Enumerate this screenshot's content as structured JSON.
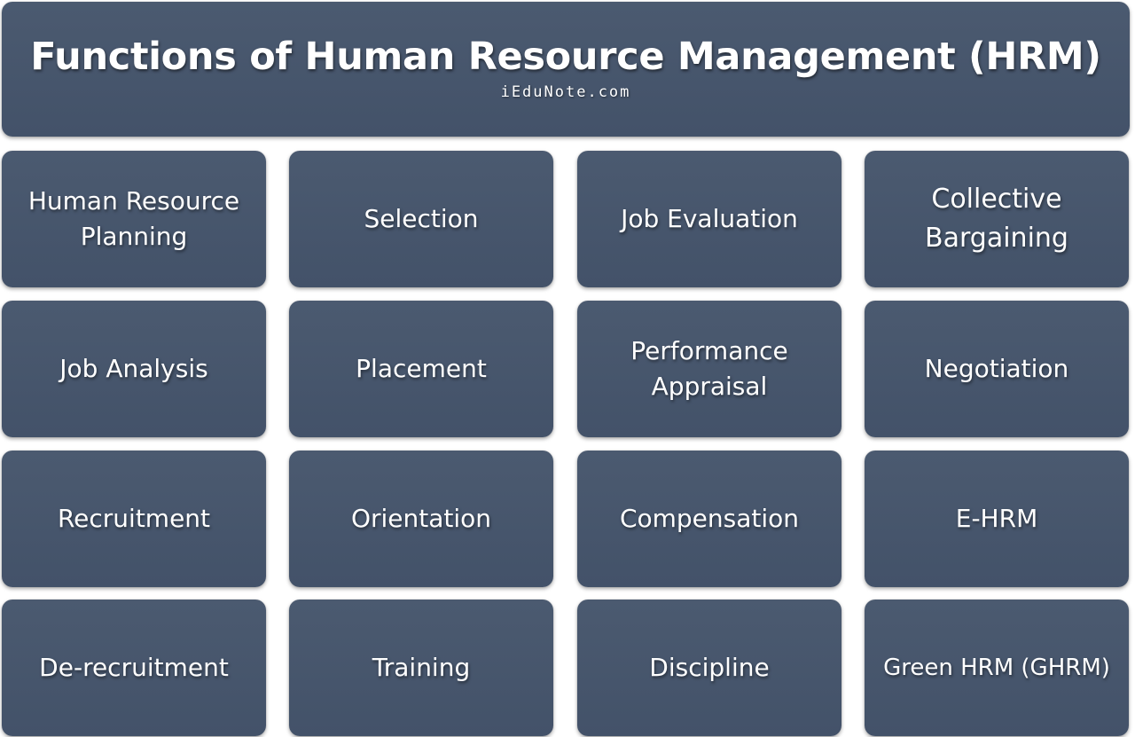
{
  "header": {
    "title": "Functions of Human Resource Management (HRM)",
    "subtitle": "iEduNote.com"
  },
  "colors": {
    "box": "#475569",
    "text": "#ffffff",
    "background": "#ffffff"
  },
  "functions": [
    {
      "label": "Human Resource Planning"
    },
    {
      "label": "Selection"
    },
    {
      "label": "Job Evaluation"
    },
    {
      "label": "Collective Bargaining"
    },
    {
      "label": "Job Analysis"
    },
    {
      "label": "Placement"
    },
    {
      "label": "Performance Appraisal"
    },
    {
      "label": "Negotiation"
    },
    {
      "label": "Recruitment"
    },
    {
      "label": "Orientation"
    },
    {
      "label": "Compensation"
    },
    {
      "label": "E-HRM"
    },
    {
      "label": "De-recruitment"
    },
    {
      "label": "Training"
    },
    {
      "label": "Discipline"
    },
    {
      "label": "Green HRM (GHRM)"
    }
  ]
}
